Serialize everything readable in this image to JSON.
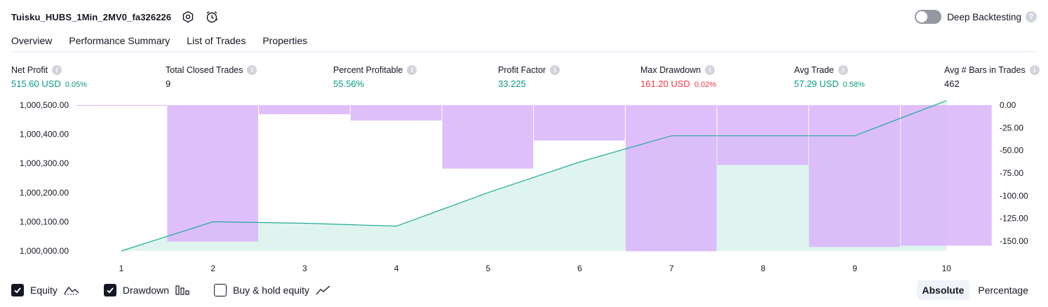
{
  "strategy": {
    "name": "Tuisku_HUBS_1Min_2MV0_fa326226"
  },
  "header_icons": {
    "settings": "settings-icon",
    "alert": "alert-clock-icon"
  },
  "deep_backtesting": {
    "label": "Deep Backtesting",
    "enabled": false,
    "help": "?"
  },
  "tabs": [
    {
      "label": "Overview",
      "active": true
    },
    {
      "label": "Performance Summary",
      "active": false
    },
    {
      "label": "List of Trades",
      "active": false
    },
    {
      "label": "Properties",
      "active": false
    }
  ],
  "metrics": {
    "net_profit": {
      "label": "Net Profit",
      "value": "515.60 USD",
      "sub": "0.05%"
    },
    "total_closed_trades": {
      "label": "Total Closed Trades",
      "value": "9"
    },
    "percent_profitable": {
      "label": "Percent Profitable",
      "value": "55.56%"
    },
    "profit_factor": {
      "label": "Profit Factor",
      "value": "33.225"
    },
    "max_drawdown": {
      "label": "Max Drawdown",
      "value": "161.20 USD",
      "sub": "0.02%"
    },
    "avg_trade": {
      "label": "Avg Trade",
      "value": "57.29 USD",
      "sub": "0.58%"
    },
    "avg_bars": {
      "label": "Avg # Bars in Trades",
      "value": "462"
    }
  },
  "info_glyph": "i",
  "chart_data": {
    "type": "area",
    "x": [
      1,
      2,
      3,
      4,
      5,
      6,
      7,
      8,
      9,
      10
    ],
    "x_tick_labels": [
      "1",
      "2",
      "3",
      "4",
      "5",
      "6",
      "7",
      "8",
      "9",
      "10"
    ],
    "left_axis": {
      "ylim": [
        1000000,
        1000500
      ],
      "tick_values": [
        1000000,
        1000100,
        1000200,
        1000300,
        1000400,
        1000500
      ],
      "tick_labels": [
        "1,000,000.00",
        "1,000,100.00",
        "1,000,200.00",
        "1,000,300.00",
        "1,000,400.00",
        "1,000,500.00"
      ]
    },
    "right_axis": {
      "ylim": [
        -165,
        0
      ],
      "tick_values": [
        0,
        -25,
        -50,
        -75,
        -100,
        -125,
        -150
      ],
      "tick_labels": [
        "0.00",
        "-25.00",
        "-50.00",
        "-75.00",
        "-100.00",
        "-125.00",
        "-150.00"
      ]
    },
    "series": [
      {
        "name": "Equity",
        "kind": "line-area",
        "axis": "left",
        "color": "#22ab94",
        "fill": "#e0f4ef",
        "x": [
          1,
          2,
          3,
          4,
          5,
          6,
          7,
          8,
          9,
          10
        ],
        "values": [
          1000000.0,
          1000100.0,
          1000095.0,
          1000085.0,
          1000200.0,
          1000305.0,
          1000395.0,
          1000395.0,
          1000395.0,
          1000515.6
        ]
      },
      {
        "name": "Drawdown",
        "kind": "bar",
        "axis": "right",
        "color": "#d9b3fc",
        "x": [
          1,
          2,
          3,
          4,
          5,
          6,
          7,
          8,
          9,
          10
        ],
        "values": [
          -0.5,
          -150.5,
          -10.0,
          -17.0,
          -70.0,
          -39.0,
          -161.2,
          -66.0,
          -156.5,
          -155.0
        ]
      }
    ],
    "grid": false
  },
  "legend": [
    {
      "label": "Equity",
      "checked": true,
      "icon": "equity-line-icon"
    },
    {
      "label": "Drawdown",
      "checked": true,
      "icon": "drawdown-bars-icon"
    },
    {
      "label": "Buy & hold equity",
      "checked": false,
      "icon": "buy-hold-line-icon"
    }
  ],
  "modes": [
    {
      "label": "Absolute",
      "active": true
    },
    {
      "label": "Percentage",
      "active": false
    }
  ],
  "colors": {
    "profit": "#089981",
    "loss": "#f23645",
    "equity": "#22ab94",
    "drawdown": "#d9b3fc"
  }
}
